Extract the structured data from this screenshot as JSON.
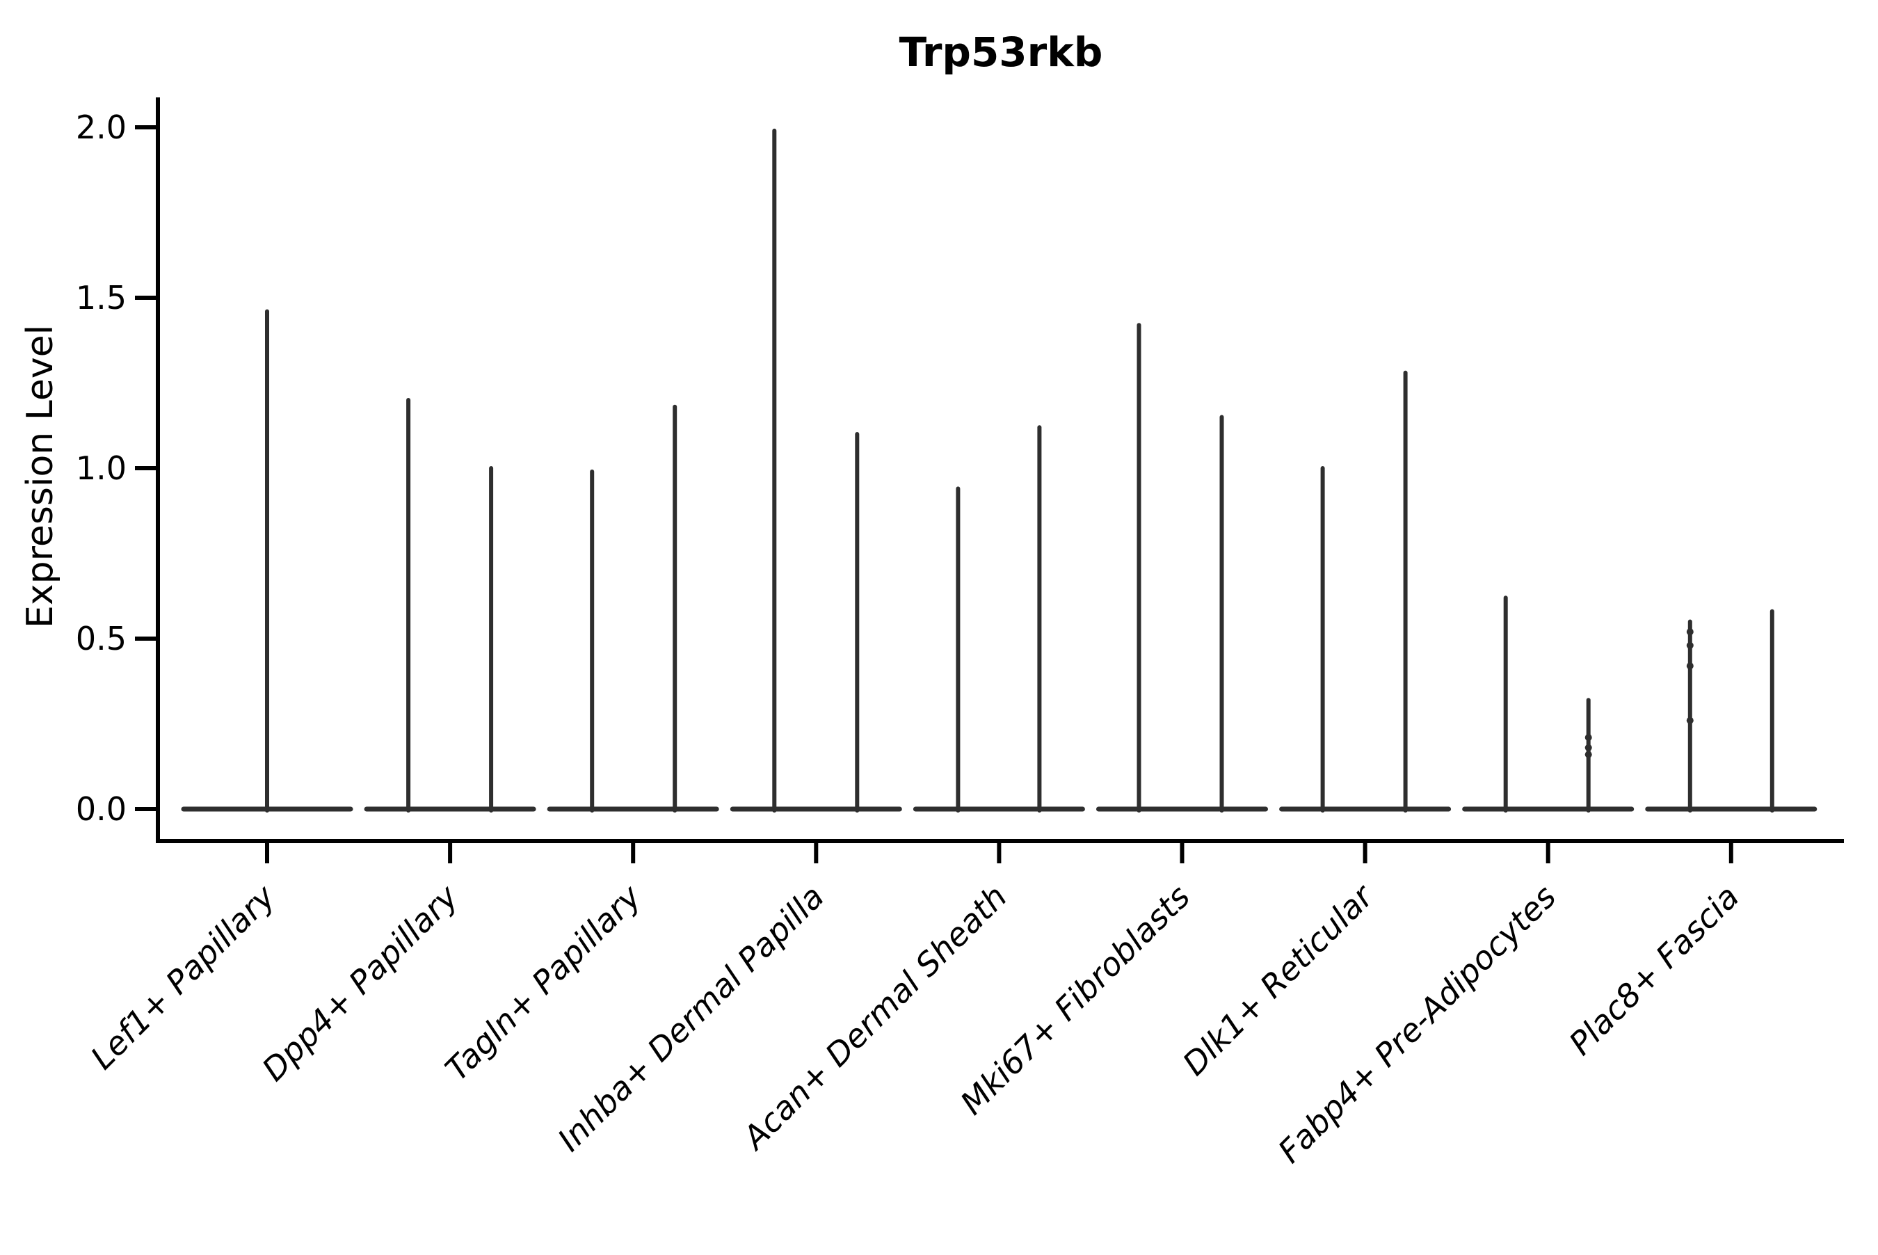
{
  "figure": {
    "background": "#ffffff"
  },
  "chart_data": {
    "type": "violin",
    "title": "Trp53rkb",
    "xlabel": "",
    "ylabel": "Expression Level",
    "ylim": [
      0.0,
      2.0
    ],
    "ytick_labels": [
      "0.0",
      "0.5",
      "1.0",
      "1.5",
      "2.0"
    ],
    "ytick_values": [
      0.0,
      0.5,
      1.0,
      1.5,
      2.0
    ],
    "grid": false,
    "legend": "none",
    "categories": [
      "Lef1+ Papillary",
      "Dpp4+ Papillary",
      "Tagln+ Papillary",
      "Inhba+ Dermal Papilla",
      "Acan+ Dermal Sheath",
      "Mki67+ Fibroblasts",
      "Dlk1+ Reticular",
      "Fabp4+ Pre-Adipocytes",
      "Plac8+ Fascia"
    ],
    "description": "Violin plot of Trp53rkb expression; expression is concentrated at 0 so each violin collapses to a flat base at 0 with thin spikes reaching the maximum expression value. Most categories show two spikes (two violins per group); the first category shows a single centered spike.",
    "violins": [
      {
        "category": "Lef1+ Papillary",
        "spikes": [
          {
            "offset": 0,
            "max_expression": 1.46
          }
        ]
      },
      {
        "category": "Dpp4+ Papillary",
        "spikes": [
          {
            "offset": -60,
            "max_expression": 1.2
          },
          {
            "offset": 59,
            "max_expression": 1.0
          }
        ]
      },
      {
        "category": "Tagln+ Papillary",
        "spikes": [
          {
            "offset": -59,
            "max_expression": 0.99
          },
          {
            "offset": 60,
            "max_expression": 1.18
          }
        ]
      },
      {
        "category": "Inhba+ Dermal Papilla",
        "spikes": [
          {
            "offset": -60,
            "max_expression": 1.99
          },
          {
            "offset": 59,
            "max_expression": 1.1
          }
        ]
      },
      {
        "category": "Acan+ Dermal Sheath",
        "spikes": [
          {
            "offset": -59,
            "max_expression": 0.94
          },
          {
            "offset": 58,
            "max_expression": 1.12
          }
        ]
      },
      {
        "category": "Mki67+ Fibroblasts",
        "spikes": [
          {
            "offset": -62,
            "max_expression": 1.42
          },
          {
            "offset": 57,
            "max_expression": 1.15
          }
        ]
      },
      {
        "category": "Dlk1+ Reticular",
        "spikes": [
          {
            "offset": -61,
            "max_expression": 1.0
          },
          {
            "offset": 58,
            "max_expression": 1.28
          }
        ]
      },
      {
        "category": "Fabp4+ Pre-Adipocytes",
        "spikes": [
          {
            "offset": -61,
            "max_expression": 0.62
          },
          {
            "offset": 58,
            "max_expression": 0.32,
            "knots": [
              0.21,
              0.18,
              0.16
            ]
          }
        ]
      },
      {
        "category": "Plac8+ Fascia",
        "spikes": [
          {
            "offset": -59,
            "max_expression": 0.55,
            "knots": [
              0.52,
              0.48,
              0.42,
              0.26
            ]
          },
          {
            "offset": 59,
            "max_expression": 0.58
          }
        ]
      }
    ],
    "colors": {
      "violin": "#2e2e2e",
      "axis": "#000000",
      "text": "#000000",
      "background": "#ffffff"
    }
  }
}
